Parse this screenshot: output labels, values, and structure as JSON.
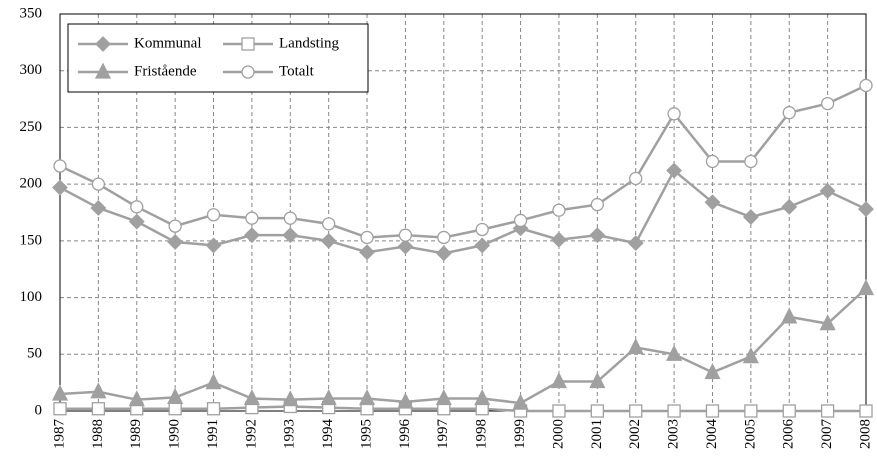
{
  "chart_data": {
    "type": "line",
    "categories": [
      "1987",
      "1988",
      "1989",
      "1990",
      "1991",
      "1992",
      "1993",
      "1994",
      "1995",
      "1996",
      "1997",
      "1998",
      "1999",
      "2000",
      "2001",
      "2002",
      "2003",
      "2004",
      "2005",
      "2006",
      "2007",
      "2008"
    ],
    "series": [
      {
        "name": "Kommunal",
        "color": "#a0a0a0",
        "marker": "diamond",
        "values": [
          197,
          179,
          167,
          149,
          146,
          155,
          155,
          150,
          140,
          145,
          139,
          146,
          161,
          151,
          155,
          148,
          212,
          184,
          171,
          180,
          194,
          178
        ]
      },
      {
        "name": "Landsting",
        "color": "#a0a0a0",
        "marker": "square",
        "values": [
          2,
          2,
          2,
          2,
          2,
          3,
          4,
          3,
          2,
          2,
          2,
          2,
          0,
          0,
          0,
          0,
          0,
          0,
          0,
          0,
          0,
          0
        ]
      },
      {
        "name": "Fristående",
        "color": "#a0a0a0",
        "marker": "triangle",
        "values": [
          15,
          17,
          10,
          12,
          25,
          11,
          10,
          11,
          11,
          8,
          11,
          11,
          7,
          26,
          26,
          56,
          50,
          34,
          48,
          83,
          77,
          108
        ]
      },
      {
        "name": "Totalt",
        "color": "#a0a0a0",
        "marker": "circle",
        "values": [
          216,
          200,
          180,
          163,
          173,
          170,
          170,
          165,
          153,
          155,
          153,
          160,
          168,
          177,
          182,
          205,
          262,
          220,
          220,
          263,
          271,
          287
        ]
      }
    ],
    "ylim": [
      0,
      350
    ],
    "yticks": [
      0,
      50,
      100,
      150,
      200,
      250,
      300,
      350
    ],
    "grid": true,
    "legend": "upper left"
  }
}
